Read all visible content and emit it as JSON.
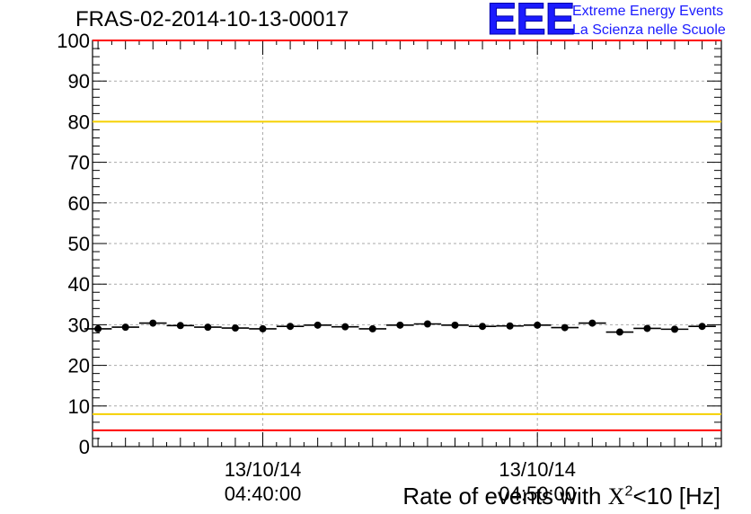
{
  "header": {
    "run_title": "FRAS-02-2014-10-13-00017",
    "logo_text": "EEE",
    "logo_line1": "Extreme Energy Events",
    "logo_line2": "La Scienza nelle Scuole"
  },
  "xaxis_title": {
    "prefix": "Rate of events with ",
    "chi": "X",
    "sup": "2",
    "suffix": "<10 [Hz]"
  },
  "colors": {
    "limit_red": "#ff0000",
    "limit_yellow": "#f5d000",
    "marker": "#000000",
    "grid": "#aaaaaa",
    "logo_blue": "#1b1bff"
  },
  "chart_data": {
    "type": "scatter",
    "title": "",
    "xlabel": "",
    "ylabel": "",
    "ylim": [
      0,
      100
    ],
    "y_ticks": [
      "0",
      "10",
      "20",
      "30",
      "40",
      "50",
      "60",
      "70",
      "80",
      "90",
      "100"
    ],
    "x_ticks": [
      {
        "date": "13/10/14",
        "time": "04:40:00"
      },
      {
        "date": "13/10/14",
        "time": "04:50:00"
      }
    ],
    "x_tick_minutes": [
      0,
      10
    ],
    "xlim_minutes": [
      -6.2,
      16.7
    ],
    "points_x_minutes": [
      -6.0,
      -5.0,
      -4.0,
      -3.0,
      -2.0,
      -1.0,
      0.0,
      1.0,
      2.0,
      3.0,
      4.0,
      5.0,
      6.0,
      7.0,
      8.0,
      9.0,
      10.0,
      11.0,
      12.0,
      13.0,
      14.0,
      15.0,
      16.0
    ],
    "values": [
      29.0,
      29.4,
      30.4,
      29.8,
      29.4,
      29.2,
      29.0,
      29.6,
      29.9,
      29.5,
      29.0,
      29.9,
      30.2,
      29.9,
      29.6,
      29.7,
      29.9,
      29.3,
      30.4,
      28.2,
      29.1,
      28.9,
      29.6
    ],
    "reference_lines": [
      {
        "y": 100,
        "color": "red"
      },
      {
        "y": 80,
        "color": "yellow"
      },
      {
        "y": 8,
        "color": "yellow"
      },
      {
        "y": 4,
        "color": "red"
      }
    ],
    "grid": true,
    "legend": "none"
  }
}
